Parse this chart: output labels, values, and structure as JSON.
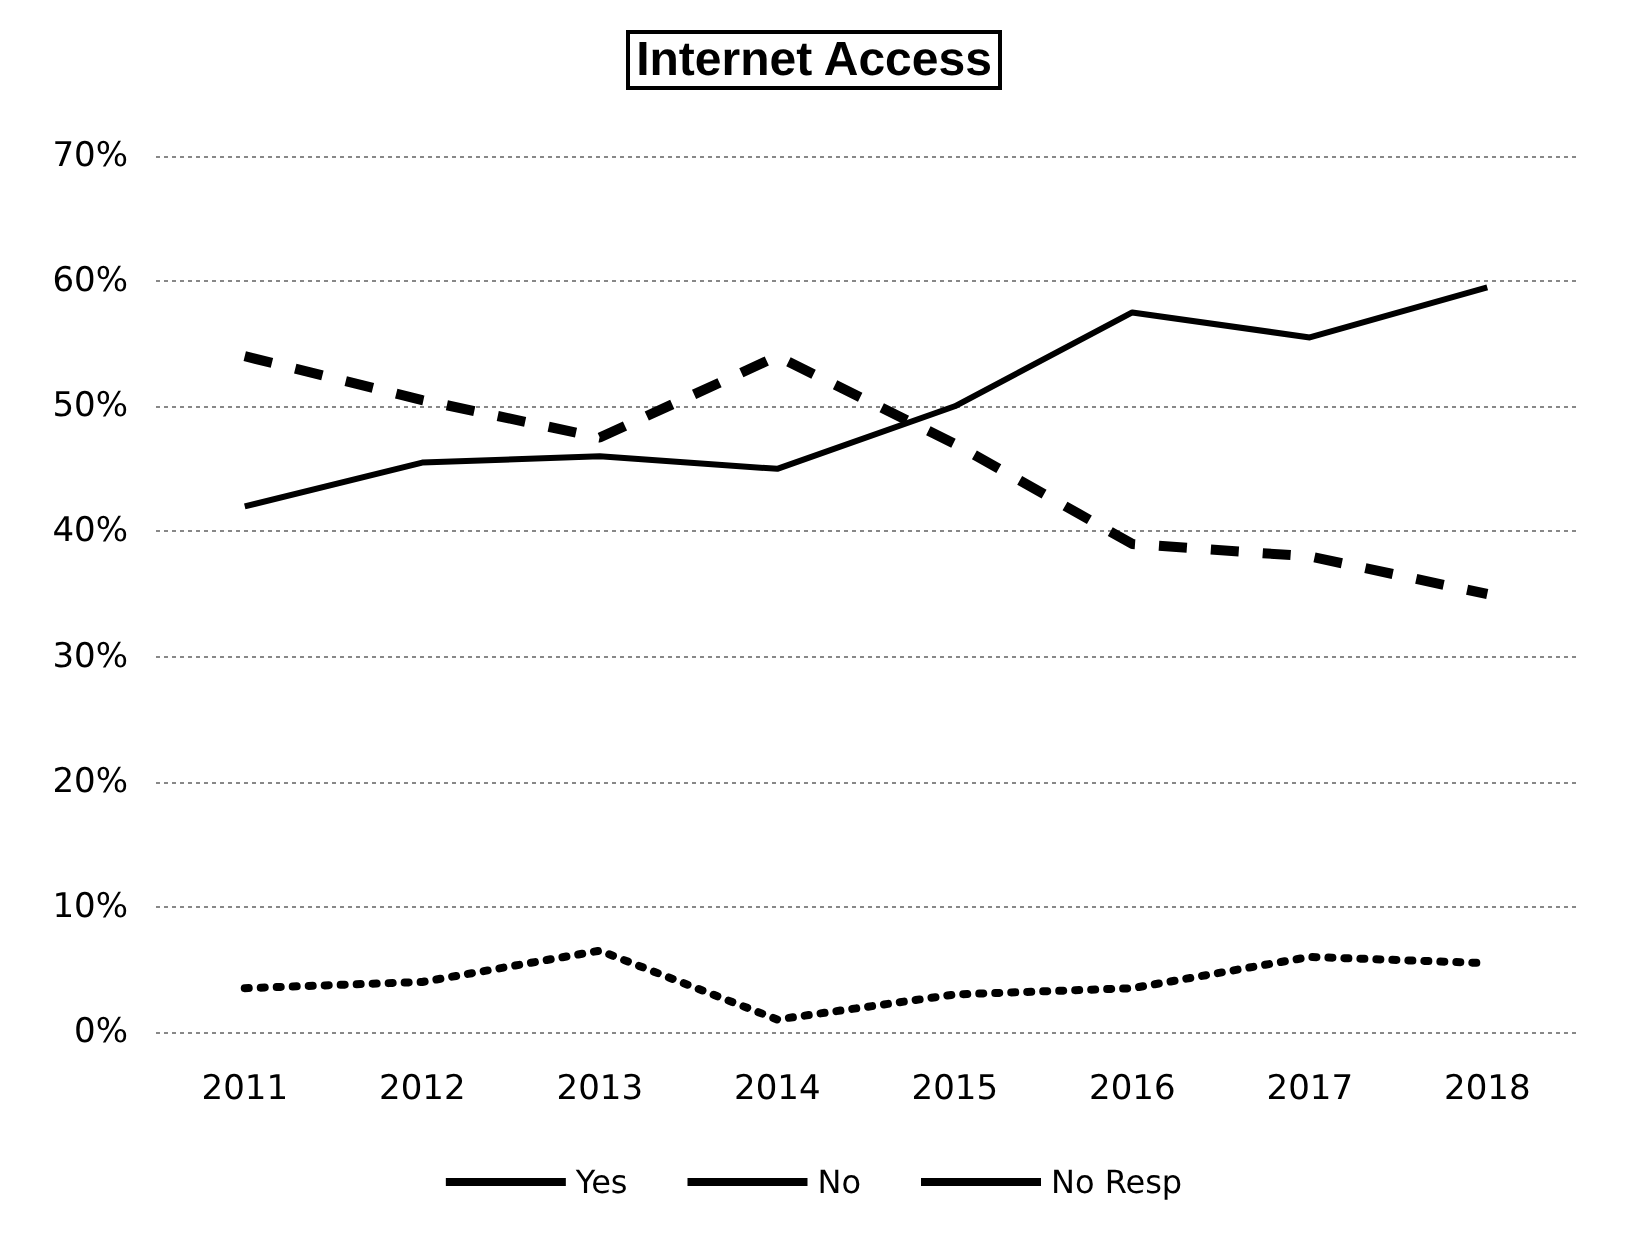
{
  "chart_data": {
    "type": "line",
    "title": "Internet Access",
    "categories": [
      "2011",
      "2012",
      "2013",
      "2014",
      "2015",
      "2016",
      "2017",
      "2018"
    ],
    "series": [
      {
        "name": "Yes",
        "color": "#000000",
        "line_style": "solid",
        "values": [
          42,
          45.5,
          46,
          45,
          50,
          57.5,
          55.5,
          59.5
        ]
      },
      {
        "name": "No",
        "color": "#000000",
        "line_style": "dashed",
        "values": [
          54,
          50.5,
          47.5,
          54,
          47,
          39,
          38,
          35
        ]
      },
      {
        "name": "No Resp",
        "color": "#000000",
        "line_style": "dotted",
        "values": [
          3.5,
          4,
          6.5,
          1,
          3,
          3.5,
          6,
          5.5
        ]
      }
    ],
    "ylim": [
      0,
      70
    ],
    "yticks": [
      {
        "value": 0,
        "label": "0%"
      },
      {
        "value": 10,
        "label": "10%"
      },
      {
        "value": 20,
        "label": "20%"
      },
      {
        "value": 30,
        "label": "30%"
      },
      {
        "value": 40,
        "label": "40%"
      },
      {
        "value": 50,
        "label": "50%"
      },
      {
        "value": 60,
        "label": "60%"
      },
      {
        "value": 70,
        "label": "70%"
      }
    ],
    "grid": "y",
    "legend": "bottom",
    "marker": "none"
  }
}
